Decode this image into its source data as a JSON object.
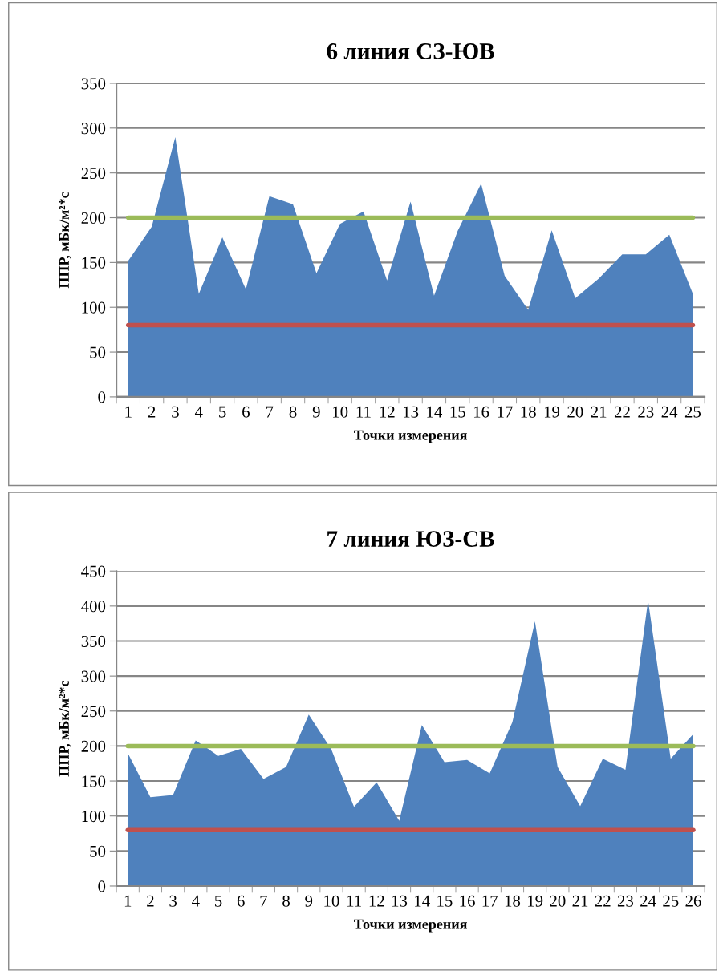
{
  "chart_data": [
    {
      "type": "area",
      "title": "6 линия СЗ-ЮВ",
      "xlabel": "Точки измерения",
      "ylabel": "ППР, мБк/м²*с",
      "categories": [
        "1",
        "2",
        "3",
        "4",
        "5",
        "6",
        "7",
        "8",
        "9",
        "10",
        "11",
        "12",
        "13",
        "14",
        "15",
        "16",
        "17",
        "18",
        "19",
        "20",
        "21",
        "22",
        "23",
        "24",
        "25"
      ],
      "series": [
        {
          "color": "#4f81bd",
          "values": [
            152,
            190,
            290,
            115,
            178,
            120,
            224,
            215,
            138,
            193,
            207,
            130,
            218,
            113,
            185,
            238,
            135,
            97,
            186,
            110,
            132,
            159,
            159,
            181,
            115
          ]
        }
      ],
      "ylim": [
        0,
        350
      ],
      "yticks": [
        0,
        50,
        100,
        150,
        200,
        250,
        300,
        350
      ],
      "grid": "y",
      "ref_lines": [
        {
          "axis": "y",
          "value": 200,
          "color": "#9bbb59"
        },
        {
          "axis": "y",
          "value": 80,
          "color": "#c0504d"
        }
      ]
    },
    {
      "type": "area",
      "title": "7 линия ЮЗ-СВ",
      "xlabel": "Точки измерения",
      "ylabel": "ППР, мБк/м²*с",
      "categories": [
        "1",
        "2",
        "3",
        "4",
        "5",
        "6",
        "7",
        "8",
        "9",
        "10",
        "11",
        "12",
        "13",
        "14",
        "15",
        "16",
        "17",
        "18",
        "19",
        "20",
        "21",
        "22",
        "23",
        "24",
        "25",
        "26"
      ],
      "series": [
        {
          "color": "#4f81bd",
          "values": [
            190,
            127,
            130,
            208,
            186,
            196,
            153,
            170,
            245,
            195,
            113,
            148,
            93,
            230,
            177,
            180,
            161,
            234,
            378,
            170,
            114,
            182,
            166,
            408,
            182,
            217
          ]
        }
      ],
      "ylim": [
        0,
        450
      ],
      "yticks": [
        0,
        50,
        100,
        150,
        200,
        250,
        300,
        350,
        400,
        450
      ],
      "grid": "y",
      "ref_lines": [
        {
          "axis": "y",
          "value": 200,
          "color": "#9bbb59"
        },
        {
          "axis": "y",
          "value": 80,
          "color": "#c0504d"
        }
      ]
    }
  ]
}
